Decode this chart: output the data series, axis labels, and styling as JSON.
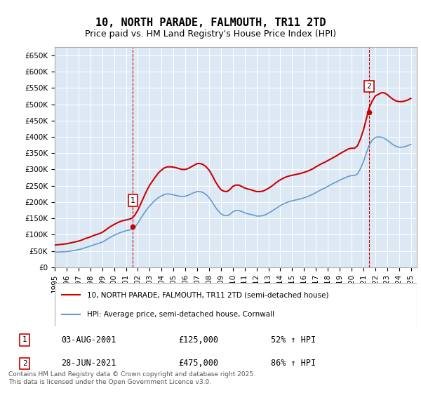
{
  "title": "10, NORTH PARADE, FALMOUTH, TR11 2TD",
  "subtitle": "Price paid vs. HM Land Registry's House Price Index (HPI)",
  "background_color": "#dce9f5",
  "plot_bg_color": "#dce9f5",
  "ylim": [
    0,
    675000
  ],
  "yticks": [
    0,
    50000,
    100000,
    150000,
    200000,
    250000,
    300000,
    350000,
    400000,
    450000,
    500000,
    550000,
    600000,
    650000
  ],
  "xlim_start": 1995.0,
  "xlim_end": 2025.5,
  "red_line_color": "#cc0000",
  "blue_line_color": "#6699cc",
  "vline_color": "#cc0000",
  "point1_x": 2001.58,
  "point1_y": 125000,
  "point1_label": "1",
  "point1_date": "03-AUG-2001",
  "point1_price": "£125,000",
  "point1_hpi": "52% ↑ HPI",
  "point2_x": 2021.48,
  "point2_y": 475000,
  "point2_label": "2",
  "point2_date": "28-JUN-2021",
  "point2_price": "£475,000",
  "point2_hpi": "86% ↑ HPI",
  "legend_line1": "10, NORTH PARADE, FALMOUTH, TR11 2TD (semi-detached house)",
  "legend_line2": "HPI: Average price, semi-detached house, Cornwall",
  "footer": "Contains HM Land Registry data © Crown copyright and database right 2025.\nThis data is licensed under the Open Government Licence v3.0.",
  "hpi_red_data_x": [
    1995.0,
    1995.25,
    1995.5,
    1995.75,
    1996.0,
    1996.25,
    1996.5,
    1996.75,
    1997.0,
    1997.25,
    1997.5,
    1997.75,
    1998.0,
    1998.25,
    1998.5,
    1998.75,
    1999.0,
    1999.25,
    1999.5,
    1999.75,
    2000.0,
    2000.25,
    2000.5,
    2000.75,
    2001.0,
    2001.25,
    2001.5,
    2001.75,
    2002.0,
    2002.25,
    2002.5,
    2002.75,
    2003.0,
    2003.25,
    2003.5,
    2003.75,
    2004.0,
    2004.25,
    2004.5,
    2004.75,
    2005.0,
    2005.25,
    2005.5,
    2005.75,
    2006.0,
    2006.25,
    2006.5,
    2006.75,
    2007.0,
    2007.25,
    2007.5,
    2007.75,
    2008.0,
    2008.25,
    2008.5,
    2008.75,
    2009.0,
    2009.25,
    2009.5,
    2009.75,
    2010.0,
    2010.25,
    2010.5,
    2010.75,
    2011.0,
    2011.25,
    2011.5,
    2011.75,
    2012.0,
    2012.25,
    2012.5,
    2012.75,
    2013.0,
    2013.25,
    2013.5,
    2013.75,
    2014.0,
    2014.25,
    2014.5,
    2014.75,
    2015.0,
    2015.25,
    2015.5,
    2015.75,
    2016.0,
    2016.25,
    2016.5,
    2016.75,
    2017.0,
    2017.25,
    2017.5,
    2017.75,
    2018.0,
    2018.25,
    2018.5,
    2018.75,
    2019.0,
    2019.25,
    2019.5,
    2019.75,
    2020.0,
    2020.25,
    2020.5,
    2020.75,
    2021.0,
    2021.25,
    2021.5,
    2021.75,
    2022.0,
    2022.25,
    2022.5,
    2022.75,
    2023.0,
    2023.25,
    2023.5,
    2023.75,
    2024.0,
    2024.25,
    2024.5,
    2024.75,
    2025.0
  ],
  "hpi_red_data_y": [
    68000,
    69000,
    70000,
    71000,
    72000,
    74000,
    76000,
    78000,
    80000,
    83000,
    87000,
    90000,
    93000,
    97000,
    100000,
    103000,
    107000,
    113000,
    120000,
    126000,
    131000,
    136000,
    140000,
    143000,
    145000,
    147000,
    150000,
    160000,
    175000,
    195000,
    215000,
    235000,
    252000,
    265000,
    278000,
    290000,
    298000,
    305000,
    308000,
    308000,
    307000,
    305000,
    302000,
    300000,
    300000,
    303000,
    308000,
    313000,
    318000,
    318000,
    315000,
    308000,
    298000,
    283000,
    265000,
    250000,
    238000,
    233000,
    232000,
    238000,
    248000,
    252000,
    252000,
    248000,
    243000,
    240000,
    238000,
    235000,
    232000,
    232000,
    233000,
    237000,
    242000,
    248000,
    255000,
    262000,
    268000,
    273000,
    277000,
    280000,
    282000,
    284000,
    286000,
    288000,
    291000,
    294000,
    298000,
    302000,
    308000,
    313000,
    318000,
    322000,
    327000,
    332000,
    337000,
    342000,
    348000,
    353000,
    358000,
    363000,
    365000,
    365000,
    372000,
    393000,
    420000,
    455000,
    490000,
    510000,
    525000,
    530000,
    535000,
    535000,
    530000,
    522000,
    515000,
    510000,
    508000,
    508000,
    510000,
    513000,
    518000
  ],
  "hpi_blue_data_x": [
    1995.0,
    1995.25,
    1995.5,
    1995.75,
    1996.0,
    1996.25,
    1996.5,
    1996.75,
    1997.0,
    1997.25,
    1997.5,
    1997.75,
    1998.0,
    1998.25,
    1998.5,
    1998.75,
    1999.0,
    1999.25,
    1999.5,
    1999.75,
    2000.0,
    2000.25,
    2000.5,
    2000.75,
    2001.0,
    2001.25,
    2001.5,
    2001.75,
    2002.0,
    2002.25,
    2002.5,
    2002.75,
    2003.0,
    2003.25,
    2003.5,
    2003.75,
    2004.0,
    2004.25,
    2004.5,
    2004.75,
    2005.0,
    2005.25,
    2005.5,
    2005.75,
    2006.0,
    2006.25,
    2006.5,
    2006.75,
    2007.0,
    2007.25,
    2007.5,
    2007.75,
    2008.0,
    2008.25,
    2008.5,
    2008.75,
    2009.0,
    2009.25,
    2009.5,
    2009.75,
    2010.0,
    2010.25,
    2010.5,
    2010.75,
    2011.0,
    2011.25,
    2011.5,
    2011.75,
    2012.0,
    2012.25,
    2012.5,
    2012.75,
    2013.0,
    2013.25,
    2013.5,
    2013.75,
    2014.0,
    2014.25,
    2014.5,
    2014.75,
    2015.0,
    2015.25,
    2015.5,
    2015.75,
    2016.0,
    2016.25,
    2016.5,
    2016.75,
    2017.0,
    2017.25,
    2017.5,
    2017.75,
    2018.0,
    2018.25,
    2018.5,
    2018.75,
    2019.0,
    2019.25,
    2019.5,
    2019.75,
    2020.0,
    2020.25,
    2020.5,
    2020.75,
    2021.0,
    2021.25,
    2021.5,
    2021.75,
    2022.0,
    2022.25,
    2022.5,
    2022.75,
    2023.0,
    2023.25,
    2023.5,
    2023.75,
    2024.0,
    2024.25,
    2024.5,
    2024.75,
    2025.0
  ],
  "hpi_blue_data_y": [
    46000,
    46500,
    47000,
    47500,
    48000,
    49000,
    50500,
    52000,
    54000,
    56000,
    59000,
    62000,
    65000,
    68000,
    71000,
    74000,
    77000,
    82000,
    88000,
    93000,
    98000,
    102000,
    106000,
    109000,
    112000,
    114000,
    116000,
    123000,
    135000,
    150000,
    164000,
    177000,
    188000,
    198000,
    207000,
    214000,
    219000,
    223000,
    225000,
    224000,
    222000,
    220000,
    218000,
    217000,
    218000,
    221000,
    225000,
    229000,
    232000,
    232000,
    229000,
    223000,
    214000,
    201000,
    186000,
    174000,
    164000,
    159000,
    158000,
    162000,
    170000,
    174000,
    174000,
    171000,
    167000,
    164000,
    162000,
    160000,
    157000,
    157000,
    158000,
    161000,
    166000,
    171000,
    177000,
    183000,
    189000,
    194000,
    198000,
    201000,
    204000,
    206000,
    208000,
    210000,
    213000,
    216000,
    220000,
    224000,
    229000,
    234000,
    239000,
    243000,
    248000,
    253000,
    258000,
    262000,
    267000,
    271000,
    275000,
    279000,
    281000,
    281000,
    286000,
    302000,
    323000,
    350000,
    375000,
    390000,
    398000,
    400000,
    399000,
    396000,
    390000,
    383000,
    376000,
    371000,
    368000,
    368000,
    370000,
    373000,
    377000
  ]
}
